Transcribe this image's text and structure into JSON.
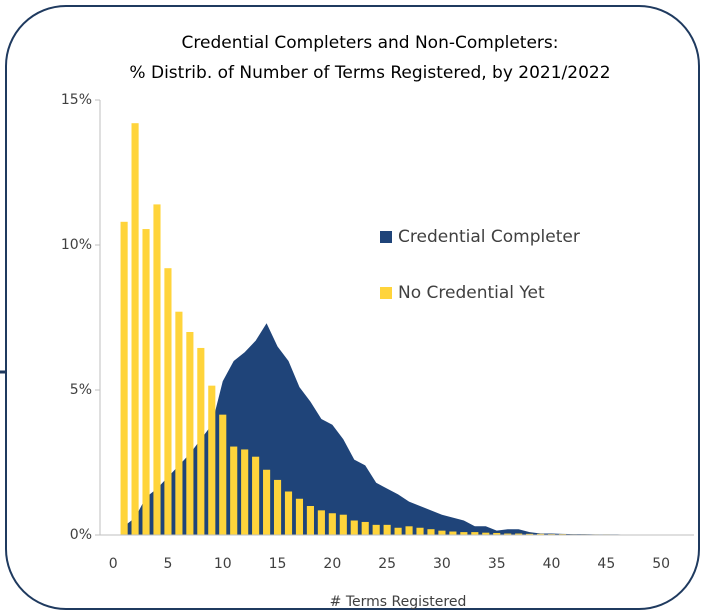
{
  "chart_data": {
    "type": "bar-area",
    "title": [
      "Credential Completers and Non-Completers:",
      "% Distrib. of Number of Terms Registered, by 2021/2022"
    ],
    "x_label": "# Terms Registered",
    "x": [
      1,
      2,
      3,
      4,
      5,
      6,
      7,
      8,
      9,
      10,
      11,
      12,
      13,
      14,
      15,
      16,
      17,
      18,
      19,
      20,
      21,
      22,
      23,
      24,
      25,
      26,
      27,
      28,
      29,
      30,
      31,
      32,
      33,
      34,
      35,
      36,
      37,
      38,
      39,
      40,
      41,
      42,
      43,
      44,
      45,
      46,
      47,
      48,
      49,
      50,
      51,
      52
    ],
    "series": [
      {
        "name": "Credential Completer",
        "color": "#1f4479",
        "kind": "area",
        "values": [
          0.3,
          0.6,
          1.3,
          1.6,
          2.0,
          2.4,
          2.8,
          3.3,
          3.8,
          5.3,
          6.0,
          6.3,
          6.7,
          7.3,
          6.5,
          6.0,
          5.1,
          4.6,
          4.0,
          3.8,
          3.3,
          2.6,
          2.4,
          1.8,
          1.6,
          1.4,
          1.15,
          1.0,
          0.85,
          0.7,
          0.6,
          0.5,
          0.3,
          0.3,
          0.15,
          0.2,
          0.2,
          0.1,
          0.05,
          0.05,
          0.04,
          0.03,
          0.03,
          0.02,
          0.02,
          0.02,
          0.01,
          0.01,
          0.01,
          0.01,
          0.01,
          0.01
        ]
      },
      {
        "name": "No Credential Yet",
        "color": "#ffd43b",
        "kind": "bar",
        "values": [
          10.8,
          14.2,
          10.55,
          11.4,
          9.2,
          7.7,
          7.0,
          6.45,
          5.15,
          4.15,
          3.05,
          2.95,
          2.7,
          2.25,
          1.9,
          1.5,
          1.25,
          1.0,
          0.85,
          0.75,
          0.7,
          0.5,
          0.45,
          0.35,
          0.35,
          0.25,
          0.3,
          0.25,
          0.2,
          0.15,
          0.12,
          0.1,
          0.1,
          0.08,
          0.07,
          0.05,
          0.05,
          0.04,
          0.04,
          0.03,
          0.03,
          0.02,
          0.02,
          0.02,
          0.02,
          0.01,
          0.01,
          0.01,
          0.01,
          0.01,
          0.01,
          0.01
        ]
      }
    ],
    "xlim": [
      -1.2,
      53
    ],
    "xticks": [
      0,
      5,
      10,
      15,
      20,
      25,
      30,
      35,
      40,
      45,
      50
    ],
    "ylim": [
      0,
      15
    ],
    "yticks": [
      {
        "value": 0,
        "label": "0%"
      },
      {
        "value": 5,
        "label": "5%"
      },
      {
        "value": 10,
        "label": "10%"
      },
      {
        "value": 15,
        "label": "15%"
      }
    ],
    "legend": "center-right"
  }
}
